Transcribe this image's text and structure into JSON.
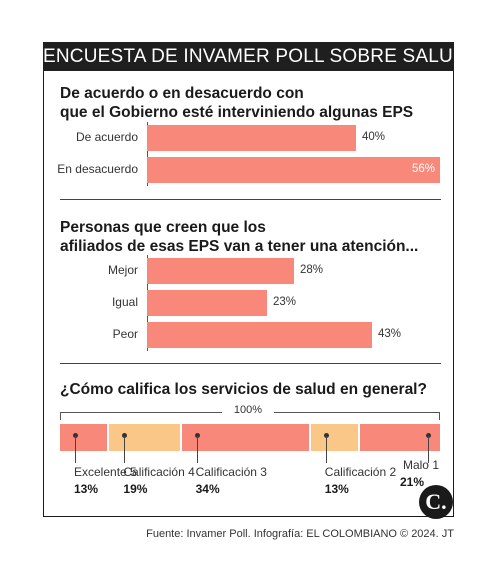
{
  "header": {
    "title": "ENCUESTA DE INVAMER POLL SOBRE SALUD"
  },
  "colors": {
    "bar": "#f8897a",
    "stack_light": "#fbc788",
    "stack_dark": "#f8897a",
    "banner": "#1f1f1f"
  },
  "chart_data": [
    {
      "type": "bar",
      "orientation": "horizontal",
      "title": "De acuerdo o en desacuerdo con que el Gobierno esté interviniendo algunas EPS",
      "title_lines": [
        "De acuerdo o en desacuerdo con",
        "que el Gobierno esté interviniendo algunas EPS"
      ],
      "categories": [
        "De acuerdo",
        "En desacuerdo"
      ],
      "values": [
        40,
        56
      ],
      "value_labels": [
        "40%",
        "56%"
      ],
      "xlim": [
        0,
        56
      ]
    },
    {
      "type": "bar",
      "orientation": "horizontal",
      "title": "Personas que creen que los afiliados de esas EPS van a tener una atención...",
      "title_lines": [
        "Personas que creen que los",
        "afiliados de esas EPS van a tener una atención..."
      ],
      "categories": [
        "Mejor",
        "Igual",
        "Peor"
      ],
      "values": [
        28,
        23,
        43
      ],
      "value_labels": [
        "28%",
        "23%",
        "43%"
      ],
      "xlim": [
        0,
        56
      ]
    },
    {
      "type": "bar",
      "orientation": "stacked-horizontal",
      "title": "¿Cómo califica los servicios de salud en general?",
      "total_label": "100%",
      "categories": [
        "Excelente 5",
        "Calificación 4",
        "Calificación 3",
        "Calificación 2",
        "Malo 1"
      ],
      "values": [
        13,
        19,
        34,
        13,
        21
      ],
      "value_labels": [
        "13%",
        "19%",
        "34%",
        "13%",
        "21%"
      ]
    }
  ],
  "footer": {
    "logo": "C.",
    "source": "Fuente: Invamer Poll. Infografía: EL COLOMBIANO © 2024. JT"
  }
}
